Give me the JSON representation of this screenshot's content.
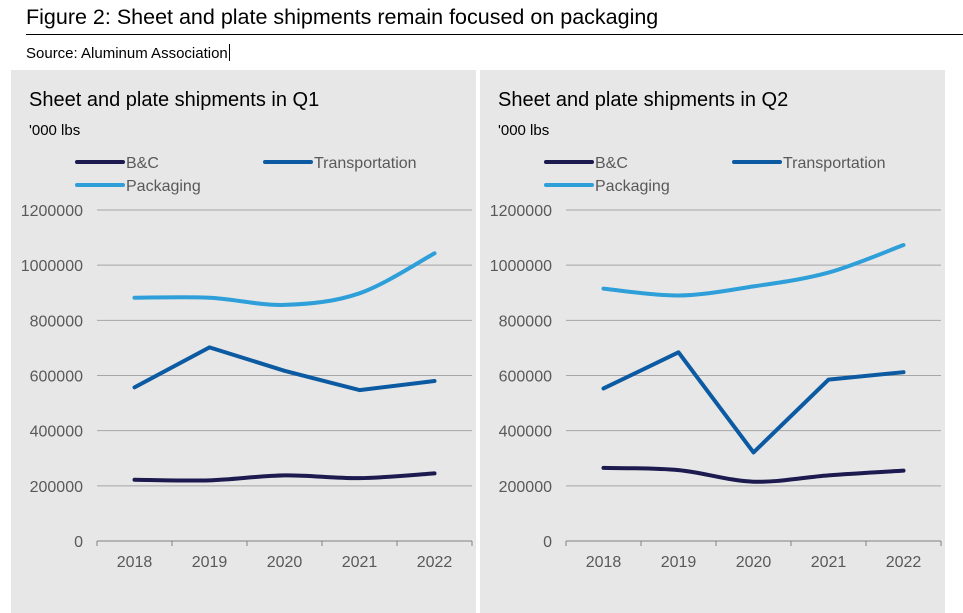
{
  "figure": {
    "title": "Figure 2: Sheet and plate shipments remain focused on packaging",
    "source": "Source: Aluminum Association"
  },
  "colors": {
    "panel_bg": "#e7e7e7",
    "grid": "#a6a6a6",
    "axis": "#808080",
    "tick_text": "#595959"
  },
  "chart_data": [
    {
      "type": "line",
      "title": "Sheet and plate shipments in Q1",
      "ylabel": "'000 lbs",
      "xlabel": "",
      "categories": [
        "2018",
        "2019",
        "2020",
        "2021",
        "2022"
      ],
      "ylim": [
        0,
        1200000
      ],
      "yticks": [
        0,
        200000,
        400000,
        600000,
        800000,
        1000000,
        1200000
      ],
      "ytick_labels": [
        "0",
        "200000",
        "400000",
        "600000",
        "800000",
        "1000000",
        "1200000"
      ],
      "grid": true,
      "legend": "top",
      "series": [
        {
          "name": "B&C",
          "color": "#1c1a4e",
          "values": [
            222000,
            220000,
            238000,
            228000,
            245000
          ]
        },
        {
          "name": "Transportation",
          "color": "#0b5aa2",
          "values": [
            557000,
            702000,
            617000,
            547000,
            580000
          ]
        },
        {
          "name": "Packaging",
          "color": "#2e9fd8",
          "values": [
            882000,
            882000,
            856000,
            898000,
            1043000
          ]
        }
      ]
    },
    {
      "type": "line",
      "title": "Sheet and plate shipments in Q2",
      "ylabel": "'000 lbs",
      "xlabel": "",
      "categories": [
        "2018",
        "2019",
        "2020",
        "2021",
        "2022"
      ],
      "ylim": [
        0,
        1200000
      ],
      "yticks": [
        0,
        200000,
        400000,
        600000,
        800000,
        1000000,
        1200000
      ],
      "ytick_labels": [
        "0",
        "200000",
        "400000",
        "600000",
        "800000",
        "1000000",
        "1200000"
      ],
      "grid": true,
      "legend": "top",
      "series": [
        {
          "name": "B&C",
          "color": "#1c1a4e",
          "values": [
            265000,
            257000,
            215000,
            238000,
            255000
          ]
        },
        {
          "name": "Transportation",
          "color": "#0b5aa2",
          "values": [
            553000,
            684000,
            321000,
            585000,
            612000
          ]
        },
        {
          "name": "Packaging",
          "color": "#2e9fd8",
          "values": [
            915000,
            890000,
            923000,
            973000,
            1073000
          ]
        }
      ]
    }
  ]
}
